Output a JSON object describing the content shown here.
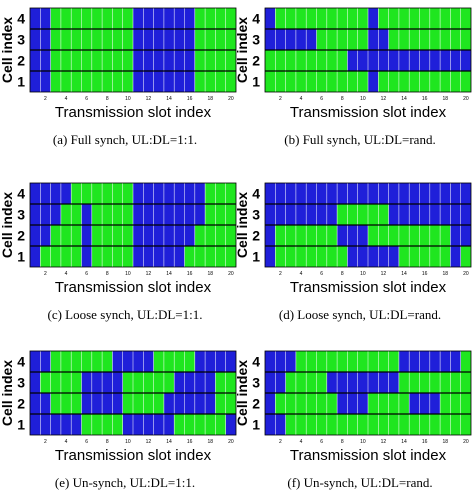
{
  "colors": {
    "uplink": "#1f1fd9",
    "downlink": "#1fe61f",
    "background": "#ffffff",
    "grid": "#ffffff",
    "cell_separator": "#000000"
  },
  "chart_data": [
    {
      "type": "heatmap",
      "caption": "(a) Full synch, UL:DL=1:1.",
      "xlabel": "Transmission slot index",
      "ylabel": "Cell index",
      "cells": [
        "1",
        "2",
        "3",
        "4"
      ],
      "slot_ticks": [
        "2",
        "4",
        "6",
        "8",
        "10",
        "12",
        "14",
        "16",
        "18",
        "20"
      ],
      "rows": [
        [
          "U",
          "U",
          "G",
          "G",
          "G",
          "G",
          "G",
          "G",
          "G",
          "G",
          "U",
          "U",
          "U",
          "U",
          "U",
          "U",
          "G",
          "G",
          "G",
          "G"
        ],
        [
          "U",
          "U",
          "G",
          "G",
          "G",
          "G",
          "G",
          "G",
          "G",
          "G",
          "U",
          "U",
          "U",
          "U",
          "U",
          "U",
          "G",
          "G",
          "G",
          "G"
        ],
        [
          "U",
          "U",
          "G",
          "G",
          "G",
          "G",
          "G",
          "G",
          "G",
          "G",
          "U",
          "U",
          "U",
          "U",
          "U",
          "U",
          "G",
          "G",
          "G",
          "G"
        ],
        [
          "U",
          "U",
          "G",
          "G",
          "G",
          "G",
          "G",
          "G",
          "G",
          "G",
          "U",
          "U",
          "U",
          "U",
          "U",
          "U",
          "G",
          "G",
          "G",
          "G"
        ]
      ]
    },
    {
      "type": "heatmap",
      "caption": "(b) Full synch, UL:DL=rand.",
      "xlabel": "Transmission slot index",
      "ylabel": "Cell index",
      "cells": [
        "1",
        "2",
        "3",
        "4"
      ],
      "slot_ticks": [
        "2",
        "4",
        "6",
        "8",
        "10",
        "12",
        "14",
        "16",
        "18",
        "20"
      ],
      "rows": [
        [
          "G",
          "G",
          "G",
          "G",
          "G",
          "G",
          "G",
          "G",
          "G",
          "G",
          "U",
          "G",
          "G",
          "G",
          "G",
          "G",
          "G",
          "G",
          "G",
          "G"
        ],
        [
          "G",
          "G",
          "G",
          "G",
          "G",
          "G",
          "G",
          "G",
          "U",
          "U",
          "U",
          "U",
          "U",
          "U",
          "U",
          "U",
          "U",
          "U",
          "U",
          "U"
        ],
        [
          "U",
          "U",
          "U",
          "U",
          "U",
          "G",
          "G",
          "G",
          "G",
          "G",
          "U",
          "U",
          "G",
          "G",
          "G",
          "G",
          "G",
          "G",
          "G",
          "G"
        ],
        [
          "U",
          "G",
          "G",
          "G",
          "G",
          "G",
          "G",
          "G",
          "G",
          "G",
          "U",
          "G",
          "G",
          "G",
          "G",
          "G",
          "G",
          "G",
          "G",
          "G"
        ]
      ]
    },
    {
      "type": "heatmap",
      "caption": "(c) Loose synch, UL:DL=1:1.",
      "xlabel": "Transmission slot index",
      "ylabel": "Cell index",
      "cells": [
        "1",
        "2",
        "3",
        "4"
      ],
      "slot_ticks": [
        "2",
        "4",
        "6",
        "8",
        "10",
        "12",
        "14",
        "16",
        "18",
        "20"
      ],
      "rows": [
        [
          "U",
          "G",
          "G",
          "G",
          "G",
          "U",
          "G",
          "G",
          "G",
          "G",
          "U",
          "U",
          "U",
          "U",
          "U",
          "G",
          "G",
          "G",
          "G",
          "G"
        ],
        [
          "U",
          "U",
          "G",
          "G",
          "G",
          "U",
          "G",
          "G",
          "G",
          "G",
          "U",
          "U",
          "U",
          "U",
          "U",
          "U",
          "G",
          "G",
          "G",
          "G"
        ],
        [
          "U",
          "U",
          "U",
          "G",
          "G",
          "U",
          "G",
          "G",
          "G",
          "G",
          "U",
          "U",
          "U",
          "U",
          "U",
          "U",
          "U",
          "G",
          "G",
          "G"
        ],
        [
          "U",
          "U",
          "U",
          "U",
          "G",
          "G",
          "G",
          "G",
          "G",
          "G",
          "U",
          "U",
          "U",
          "U",
          "U",
          "U",
          "U",
          "G",
          "G",
          "G"
        ]
      ]
    },
    {
      "type": "heatmap",
      "caption": "(d) Loose synch, UL:DL=rand.",
      "xlabel": "Transmission slot index",
      "ylabel": "Cell index",
      "cells": [
        "1",
        "2",
        "3",
        "4"
      ],
      "slot_ticks": [
        "2",
        "4",
        "6",
        "8",
        "10",
        "12",
        "14",
        "16",
        "18",
        "20"
      ],
      "rows": [
        [
          "U",
          "G",
          "G",
          "G",
          "G",
          "G",
          "G",
          "G",
          "U",
          "U",
          "U",
          "U",
          "U",
          "G",
          "G",
          "G",
          "G",
          "G",
          "U",
          "G"
        ],
        [
          "U",
          "G",
          "G",
          "G",
          "G",
          "G",
          "G",
          "U",
          "U",
          "U",
          "G",
          "G",
          "G",
          "G",
          "G",
          "G",
          "G",
          "G",
          "U",
          "U"
        ],
        [
          "U",
          "U",
          "U",
          "U",
          "U",
          "U",
          "U",
          "G",
          "G",
          "G",
          "G",
          "G",
          "U",
          "U",
          "U",
          "U",
          "U",
          "U",
          "U",
          "U"
        ],
        [
          "U",
          "U",
          "U",
          "U",
          "U",
          "U",
          "U",
          "U",
          "U",
          "U",
          "U",
          "U",
          "U",
          "U",
          "U",
          "U",
          "U",
          "U",
          "U",
          "U"
        ]
      ]
    },
    {
      "type": "heatmap",
      "caption": "(e) Un-synch, UL:DL=1:1.",
      "xlabel": "Transmission slot index",
      "ylabel": "Cell index",
      "cells": [
        "1",
        "2",
        "3",
        "4"
      ],
      "slot_ticks": [
        "2",
        "4",
        "6",
        "8",
        "10",
        "12",
        "14",
        "16",
        "18",
        "20"
      ],
      "rows": [
        [
          "U",
          "U",
          "U",
          "U",
          "U",
          "G",
          "G",
          "G",
          "G",
          "U",
          "U",
          "U",
          "U",
          "U",
          "G",
          "G",
          "G",
          "G",
          "G",
          "U"
        ],
        [
          "U",
          "U",
          "G",
          "G",
          "G",
          "U",
          "U",
          "U",
          "U",
          "G",
          "G",
          "G",
          "G",
          "U",
          "U",
          "U",
          "U",
          "U",
          "G",
          "G"
        ],
        [
          "U",
          "G",
          "G",
          "G",
          "G",
          "U",
          "U",
          "U",
          "U",
          "G",
          "G",
          "G",
          "G",
          "G",
          "U",
          "U",
          "U",
          "U",
          "G",
          "G"
        ],
        [
          "U",
          "U",
          "G",
          "G",
          "G",
          "G",
          "G",
          "G",
          "U",
          "U",
          "U",
          "U",
          "G",
          "G",
          "G",
          "G",
          "U",
          "U",
          "U",
          "U"
        ]
      ]
    },
    {
      "type": "heatmap",
      "caption": "(f) Un-synch, UL:DL=rand.",
      "xlabel": "Transmission slot index",
      "ylabel": "Cell index",
      "cells": [
        "1",
        "2",
        "3",
        "4"
      ],
      "slot_ticks": [
        "2",
        "4",
        "6",
        "8",
        "10",
        "12",
        "14",
        "16",
        "18",
        "20"
      ],
      "rows": [
        [
          "U",
          "U",
          "G",
          "G",
          "G",
          "G",
          "G",
          "G",
          "G",
          "G",
          "G",
          "G",
          "G",
          "G",
          "G",
          "G",
          "G",
          "G",
          "G",
          "G"
        ],
        [
          "U",
          "G",
          "G",
          "G",
          "G",
          "G",
          "G",
          "U",
          "U",
          "U",
          "G",
          "G",
          "G",
          "G",
          "U",
          "U",
          "U",
          "G",
          "G",
          "G"
        ],
        [
          "U",
          "U",
          "G",
          "G",
          "G",
          "G",
          "U",
          "U",
          "U",
          "U",
          "U",
          "U",
          "U",
          "G",
          "G",
          "G",
          "G",
          "G",
          "G",
          "G"
        ],
        [
          "U",
          "U",
          "U",
          "G",
          "G",
          "G",
          "G",
          "G",
          "G",
          "G",
          "G",
          "G",
          "G",
          "U",
          "U",
          "U",
          "U",
          "U",
          "U",
          "G"
        ]
      ]
    }
  ]
}
